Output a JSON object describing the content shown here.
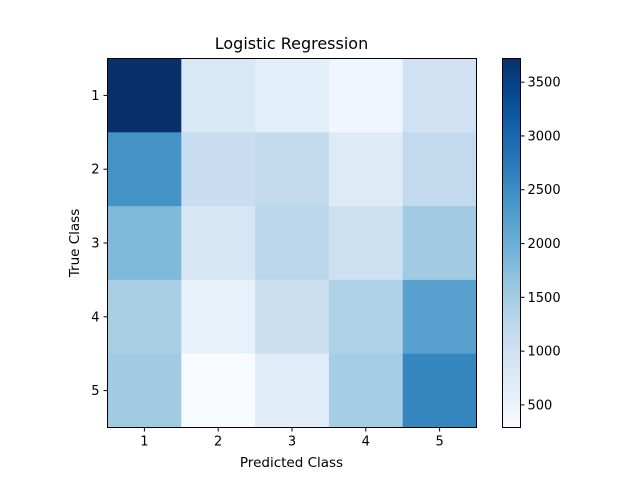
{
  "chart_data": {
    "type": "heatmap",
    "title": "Logistic Regression",
    "xlabel": "Predicted Class",
    "ylabel": "True Class",
    "x_categories": [
      "1",
      "2",
      "3",
      "4",
      "5"
    ],
    "y_categories": [
      "1",
      "2",
      "3",
      "4",
      "5"
    ],
    "values": [
      [
        3720,
        800,
        650,
        420,
        980
      ],
      [
        2420,
        1100,
        1180,
        720,
        1180
      ],
      [
        1830,
        840,
        1260,
        1000,
        1550
      ],
      [
        1450,
        560,
        1040,
        1380,
        2200
      ],
      [
        1550,
        290,
        660,
        1500,
        2600
      ]
    ],
    "colormap": "Blues",
    "vmin": 290,
    "vmax": 3720,
    "colorbar_ticks": [
      "500",
      "1000",
      "1500",
      "2000",
      "2500",
      "3000",
      "3500"
    ],
    "colorbar_tick_values": [
      500,
      1000,
      1500,
      2000,
      2500,
      3000,
      3500
    ],
    "grid": false
  }
}
